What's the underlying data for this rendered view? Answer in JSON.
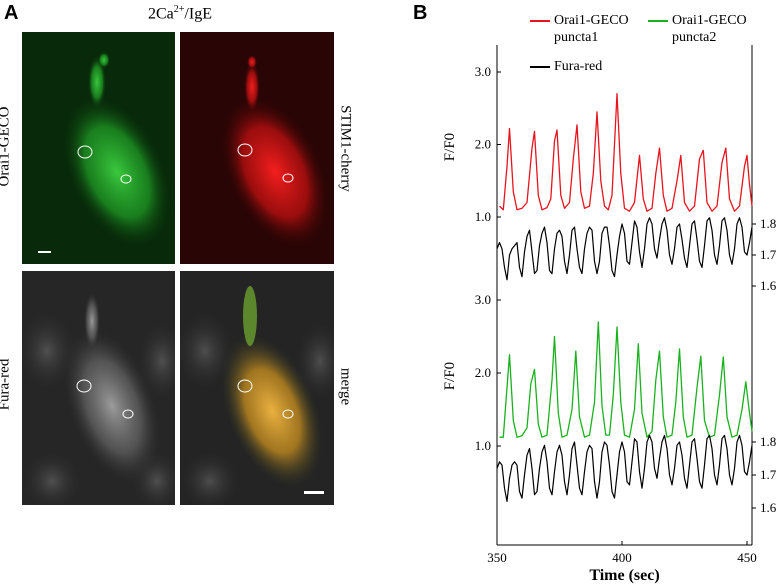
{
  "panel_a": {
    "letter": "A",
    "title_main": "2Ca",
    "title_sup": "2+",
    "title_tail": "/IgE",
    "labels": {
      "orai1": "Orai1-GECO",
      "stim1": "STIM1-cherry",
      "fura": "Fura-red",
      "merge": "merge"
    },
    "colors": {
      "green": "#1faa28",
      "red": "#e01818",
      "gray": "#9a9a9a",
      "merge": "#e0a030"
    }
  },
  "panel_b": {
    "letter": "B",
    "legend": {
      "item1_line1": "Orai1-GECO",
      "item1_line2": "puncta1",
      "item2_line1": "Orai1-GECO",
      "item2_line2": "puncta2",
      "item3": "Fura-red"
    },
    "ylabel_top": "F/F0",
    "ylabel_bottom": "F/F0",
    "xlabel": "Time (sec)"
  },
  "chart_data": {
    "type": "line",
    "xlabel": "Time (sec)",
    "xlim": [
      350,
      452
    ],
    "xticks": [
      350,
      400,
      450
    ],
    "colors": {
      "puncta1": "#e8141e",
      "puncta2": "#19b21e",
      "fura": "#000000"
    },
    "top": {
      "ylabel": "F/F0",
      "ylim_left": [
        0.0,
        3.2
      ],
      "yticks_left": [
        1.0,
        2.0,
        3.0
      ],
      "ylim_right": [
        1.56,
        2.05
      ],
      "yticks_right": [
        1.6,
        1.7,
        1.8
      ],
      "peaks_puncta1": [
        [
          351,
          1.15
        ],
        [
          352.5,
          1.1
        ],
        [
          354,
          1.7
        ],
        [
          355,
          2.22
        ],
        [
          356.5,
          1.35
        ],
        [
          358,
          1.1
        ],
        [
          360,
          1.12
        ],
        [
          362,
          1.2
        ],
        [
          364,
          1.95
        ],
        [
          365,
          2.18
        ],
        [
          366.5,
          1.3
        ],
        [
          368,
          1.1
        ],
        [
          370,
          1.13
        ],
        [
          371.5,
          1.25
        ],
        [
          373,
          2.05
        ],
        [
          374,
          2.2
        ],
        [
          375.5,
          1.3
        ],
        [
          377,
          1.12
        ],
        [
          379,
          1.2
        ],
        [
          380.5,
          1.8
        ],
        [
          382,
          2.27
        ],
        [
          383.5,
          1.35
        ],
        [
          385,
          1.12
        ],
        [
          387,
          1.15
        ],
        [
          388.5,
          1.6
        ],
        [
          390,
          2.45
        ],
        [
          391.5,
          1.5
        ],
        [
          393,
          1.15
        ],
        [
          394.5,
          1.1
        ],
        [
          396,
          1.3
        ],
        [
          398,
          2.7
        ],
        [
          399.5,
          1.6
        ],
        [
          401,
          1.12
        ],
        [
          403,
          1.08
        ],
        [
          405,
          1.2
        ],
        [
          407,
          1.85
        ],
        [
          408.5,
          1.25
        ],
        [
          410,
          1.08
        ],
        [
          412,
          1.12
        ],
        [
          413.5,
          1.6
        ],
        [
          415,
          1.95
        ],
        [
          416.5,
          1.3
        ],
        [
          418,
          1.08
        ],
        [
          420,
          1.12
        ],
        [
          422,
          1.5
        ],
        [
          423.5,
          1.85
        ],
        [
          425,
          1.2
        ],
        [
          427,
          1.08
        ],
        [
          429,
          1.15
        ],
        [
          431,
          1.8
        ],
        [
          432.5,
          1.92
        ],
        [
          434,
          1.2
        ],
        [
          436,
          1.08
        ],
        [
          438,
          1.15
        ],
        [
          440,
          1.75
        ],
        [
          441.5,
          1.95
        ],
        [
          443,
          1.25
        ],
        [
          445,
          1.08
        ],
        [
          447,
          1.15
        ],
        [
          449,
          1.7
        ],
        [
          450,
          1.85
        ],
        [
          451,
          1.45
        ],
        [
          452,
          1.15
        ]
      ],
      "trace_fura": [
        [
          350,
          1.72
        ],
        [
          351,
          1.74
        ],
        [
          352,
          1.72
        ],
        [
          353,
          1.66
        ],
        [
          354,
          1.62
        ],
        [
          355,
          1.7
        ],
        [
          356,
          1.72
        ],
        [
          357,
          1.73
        ],
        [
          358,
          1.74
        ],
        [
          359,
          1.66
        ],
        [
          360,
          1.63
        ],
        [
          361,
          1.71
        ],
        [
          362,
          1.76
        ],
        [
          363,
          1.78
        ],
        [
          364,
          1.71
        ],
        [
          365,
          1.64
        ],
        [
          366,
          1.65
        ],
        [
          367,
          1.73
        ],
        [
          368,
          1.77
        ],
        [
          369,
          1.79
        ],
        [
          370,
          1.74
        ],
        [
          371,
          1.65
        ],
        [
          372,
          1.64
        ],
        [
          373,
          1.72
        ],
        [
          374,
          1.77
        ],
        [
          375,
          1.78
        ],
        [
          376,
          1.76
        ],
        [
          377,
          1.68
        ],
        [
          378,
          1.64
        ],
        [
          379,
          1.7
        ],
        [
          380,
          1.78
        ],
        [
          381,
          1.79
        ],
        [
          382,
          1.72
        ],
        [
          383,
          1.66
        ],
        [
          384,
          1.64
        ],
        [
          385,
          1.72
        ],
        [
          386,
          1.77
        ],
        [
          387,
          1.79
        ],
        [
          388,
          1.78
        ],
        [
          389,
          1.68
        ],
        [
          390,
          1.64
        ],
        [
          391,
          1.68
        ],
        [
          392,
          1.77
        ],
        [
          393,
          1.79
        ],
        [
          394,
          1.79
        ],
        [
          395,
          1.73
        ],
        [
          396,
          1.65
        ],
        [
          397,
          1.63
        ],
        [
          398,
          1.7
        ],
        [
          399,
          1.76
        ],
        [
          400,
          1.8
        ],
        [
          401,
          1.77
        ],
        [
          402,
          1.68
        ],
        [
          403,
          1.67
        ],
        [
          404,
          1.74
        ],
        [
          405,
          1.81
        ],
        [
          406,
          1.79
        ],
        [
          407,
          1.71
        ],
        [
          408,
          1.66
        ],
        [
          409,
          1.72
        ],
        [
          410,
          1.8
        ],
        [
          411,
          1.82
        ],
        [
          412,
          1.8
        ],
        [
          413,
          1.72
        ],
        [
          414,
          1.69
        ],
        [
          415,
          1.75
        ],
        [
          416,
          1.8
        ],
        [
          417,
          1.82
        ],
        [
          418,
          1.78
        ],
        [
          419,
          1.7
        ],
        [
          420,
          1.67
        ],
        [
          421,
          1.72
        ],
        [
          422,
          1.79
        ],
        [
          423,
          1.8
        ],
        [
          424,
          1.75
        ],
        [
          425,
          1.69
        ],
        [
          426,
          1.66
        ],
        [
          427,
          1.73
        ],
        [
          428,
          1.8
        ],
        [
          429,
          1.81
        ],
        [
          430,
          1.75
        ],
        [
          431,
          1.68
        ],
        [
          432,
          1.66
        ],
        [
          433,
          1.73
        ],
        [
          434,
          1.81
        ],
        [
          435,
          1.82
        ],
        [
          436,
          1.78
        ],
        [
          437,
          1.7
        ],
        [
          438,
          1.67
        ],
        [
          439,
          1.73
        ],
        [
          440,
          1.81
        ],
        [
          441,
          1.82
        ],
        [
          442,
          1.78
        ],
        [
          443,
          1.7
        ],
        [
          444,
          1.67
        ],
        [
          445,
          1.72
        ],
        [
          446,
          1.8
        ],
        [
          447,
          1.82
        ],
        [
          448,
          1.79
        ],
        [
          449,
          1.71
        ],
        [
          450,
          1.7
        ],
        [
          451,
          1.74
        ],
        [
          452,
          1.79
        ]
      ]
    },
    "bottom": {
      "ylabel": "F/F0",
      "ylim_left": [
        0.0,
        3.2
      ],
      "yticks_left": [
        1.0,
        2.0,
        3.0
      ],
      "ylim_right": [
        1.56,
        2.05
      ],
      "yticks_right": [
        1.6,
        1.7,
        1.8
      ],
      "peaks_puncta2": [
        [
          351,
          1.12
        ],
        [
          352.5,
          1.12
        ],
        [
          354,
          1.8
        ],
        [
          355,
          2.25
        ],
        [
          356.5,
          1.35
        ],
        [
          358,
          1.12
        ],
        [
          360,
          1.14
        ],
        [
          362,
          1.25
        ],
        [
          363.5,
          1.85
        ],
        [
          365,
          2.05
        ],
        [
          366.5,
          1.3
        ],
        [
          368,
          1.12
        ],
        [
          370,
          1.15
        ],
        [
          372,
          1.9
        ],
        [
          373,
          2.5
        ],
        [
          374.5,
          1.45
        ],
        [
          376,
          1.12
        ],
        [
          378,
          1.15
        ],
        [
          380,
          1.5
        ],
        [
          381.5,
          2.3
        ],
        [
          383,
          1.4
        ],
        [
          385,
          1.12
        ],
        [
          387,
          1.15
        ],
        [
          389,
          1.6
        ],
        [
          390.5,
          2.7
        ],
        [
          392,
          1.55
        ],
        [
          393.5,
          1.15
        ],
        [
          395,
          1.15
        ],
        [
          396.5,
          1.7
        ],
        [
          398,
          2.63
        ],
        [
          399.5,
          1.6
        ],
        [
          401,
          1.15
        ],
        [
          403,
          1.12
        ],
        [
          405,
          1.5
        ],
        [
          406.5,
          2.4
        ],
        [
          408,
          1.45
        ],
        [
          410,
          1.12
        ],
        [
          412,
          1.2
        ],
        [
          413.5,
          1.9
        ],
        [
          415,
          2.3
        ],
        [
          416.5,
          1.4
        ],
        [
          418,
          1.12
        ],
        [
          420,
          1.15
        ],
        [
          421.5,
          1.6
        ],
        [
          423,
          2.33
        ],
        [
          424.5,
          1.4
        ],
        [
          426,
          1.12
        ],
        [
          428,
          1.15
        ],
        [
          430,
          1.8
        ],
        [
          431.5,
          2.23
        ],
        [
          433,
          1.35
        ],
        [
          435,
          1.12
        ],
        [
          437,
          1.15
        ],
        [
          439,
          1.7
        ],
        [
          440.5,
          2.22
        ],
        [
          442,
          1.4
        ],
        [
          444,
          1.12
        ],
        [
          446,
          1.15
        ],
        [
          448,
          1.5
        ],
        [
          449.5,
          1.88
        ],
        [
          451,
          1.45
        ],
        [
          452,
          1.2
        ]
      ],
      "trace_fura": [
        [
          350,
          1.72
        ],
        [
          351,
          1.74
        ],
        [
          352,
          1.73
        ],
        [
          353,
          1.66
        ],
        [
          354,
          1.62
        ],
        [
          355,
          1.69
        ],
        [
          356,
          1.73
        ],
        [
          357,
          1.74
        ],
        [
          358,
          1.73
        ],
        [
          359,
          1.65
        ],
        [
          360,
          1.63
        ],
        [
          361,
          1.7
        ],
        [
          362,
          1.76
        ],
        [
          363,
          1.78
        ],
        [
          364,
          1.72
        ],
        [
          365,
          1.64
        ],
        [
          366,
          1.65
        ],
        [
          367,
          1.72
        ],
        [
          368,
          1.77
        ],
        [
          369,
          1.79
        ],
        [
          370,
          1.74
        ],
        [
          371,
          1.66
        ],
        [
          372,
          1.64
        ],
        [
          373,
          1.71
        ],
        [
          374,
          1.77
        ],
        [
          375,
          1.79
        ],
        [
          376,
          1.76
        ],
        [
          377,
          1.68
        ],
        [
          378,
          1.64
        ],
        [
          379,
          1.7
        ],
        [
          380,
          1.78
        ],
        [
          381,
          1.8
        ],
        [
          382,
          1.73
        ],
        [
          383,
          1.66
        ],
        [
          384,
          1.64
        ],
        [
          385,
          1.71
        ],
        [
          386,
          1.77
        ],
        [
          387,
          1.79
        ],
        [
          388,
          1.78
        ],
        [
          389,
          1.68
        ],
        [
          390,
          1.63
        ],
        [
          391,
          1.68
        ],
        [
          392,
          1.77
        ],
        [
          393,
          1.8
        ],
        [
          394,
          1.79
        ],
        [
          395,
          1.73
        ],
        [
          396,
          1.65
        ],
        [
          397,
          1.63
        ],
        [
          398,
          1.7
        ],
        [
          399,
          1.77
        ],
        [
          400,
          1.8
        ],
        [
          401,
          1.77
        ],
        [
          402,
          1.68
        ],
        [
          403,
          1.67
        ],
        [
          404,
          1.74
        ],
        [
          405,
          1.81
        ],
        [
          406,
          1.8
        ],
        [
          407,
          1.71
        ],
        [
          408,
          1.66
        ],
        [
          409,
          1.72
        ],
        [
          410,
          1.8
        ],
        [
          411,
          1.82
        ],
        [
          412,
          1.8
        ],
        [
          413,
          1.72
        ],
        [
          414,
          1.69
        ],
        [
          415,
          1.75
        ],
        [
          416,
          1.8
        ],
        [
          417,
          1.82
        ],
        [
          418,
          1.78
        ],
        [
          419,
          1.7
        ],
        [
          420,
          1.67
        ],
        [
          421,
          1.72
        ],
        [
          422,
          1.79
        ],
        [
          423,
          1.8
        ],
        [
          424,
          1.76
        ],
        [
          425,
          1.69
        ],
        [
          426,
          1.66
        ],
        [
          427,
          1.73
        ],
        [
          428,
          1.8
        ],
        [
          429,
          1.81
        ],
        [
          430,
          1.75
        ],
        [
          431,
          1.68
        ],
        [
          432,
          1.66
        ],
        [
          433,
          1.73
        ],
        [
          434,
          1.81
        ],
        [
          435,
          1.82
        ],
        [
          436,
          1.78
        ],
        [
          437,
          1.7
        ],
        [
          438,
          1.67
        ],
        [
          439,
          1.73
        ],
        [
          440,
          1.81
        ],
        [
          441,
          1.82
        ],
        [
          442,
          1.78
        ],
        [
          443,
          1.7
        ],
        [
          444,
          1.67
        ],
        [
          445,
          1.72
        ],
        [
          446,
          1.8
        ],
        [
          447,
          1.82
        ],
        [
          448,
          1.79
        ],
        [
          449,
          1.71
        ],
        [
          450,
          1.7
        ],
        [
          451,
          1.74
        ],
        [
          452,
          1.79
        ]
      ]
    }
  }
}
